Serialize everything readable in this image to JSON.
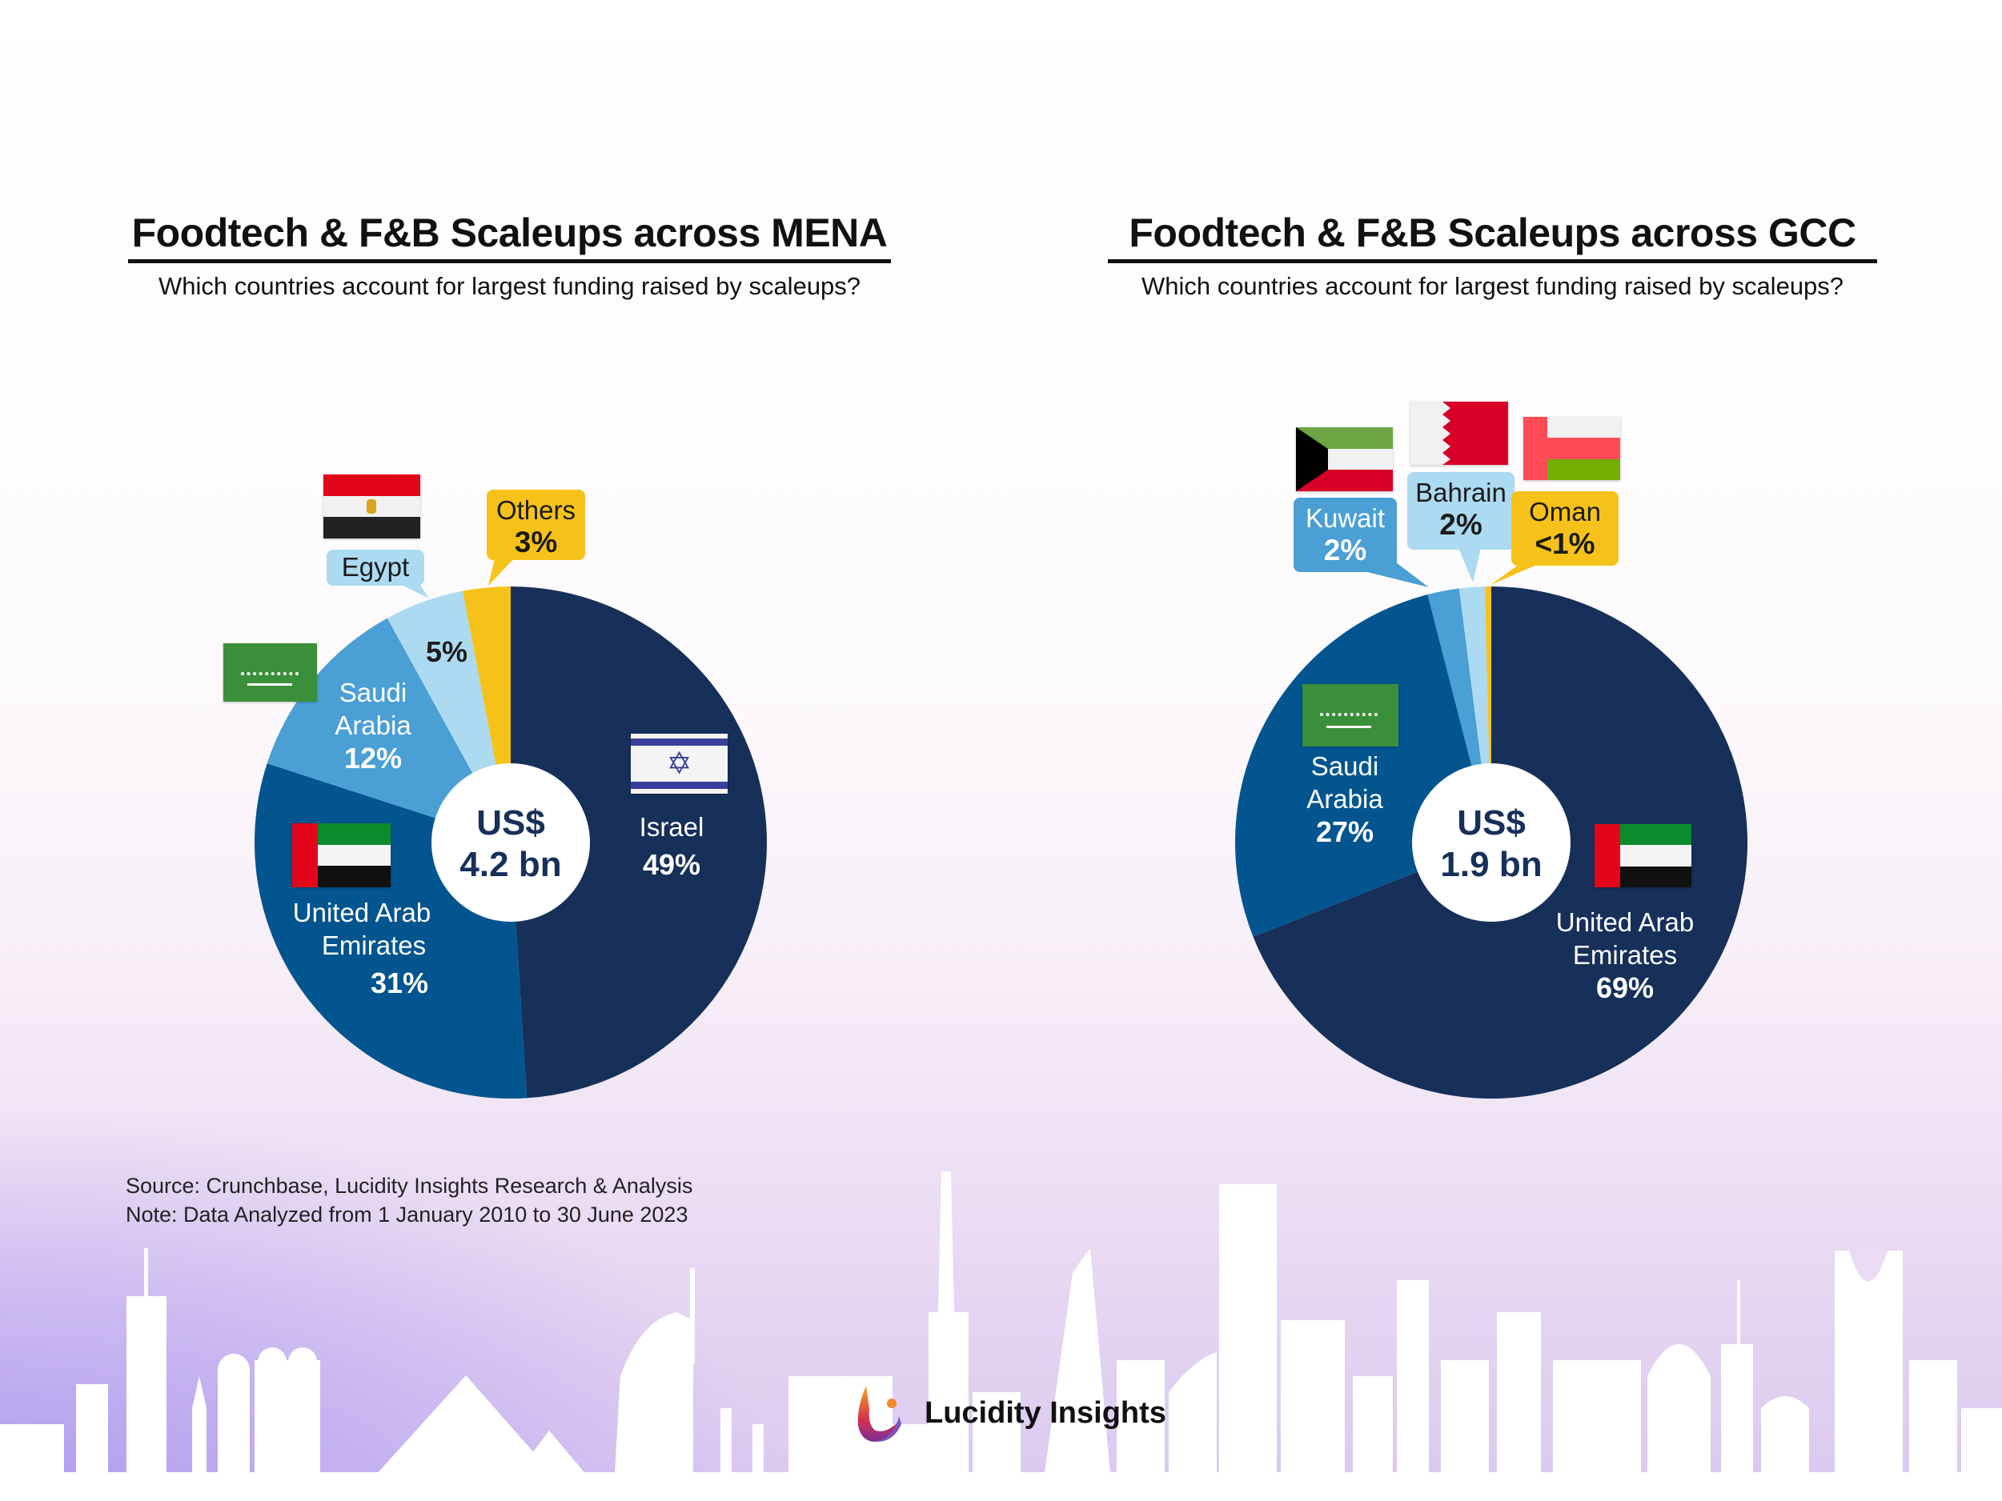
{
  "chart_data": [
    {
      "type": "pie",
      "title": "Foodtech & F&B Scaleups across MENA",
      "subtitle": "Which countries account for largest funding raised by scaleups?",
      "center_label": [
        "US$",
        "4.2 bn"
      ],
      "slices": [
        {
          "label": "Israel",
          "value": 49,
          "pct": "49%",
          "color": "#16305a"
        },
        {
          "label": "United Arab Emirates",
          "value": 31,
          "pct": "31%",
          "color": "#03558f"
        },
        {
          "label": "Saudi Arabia",
          "value": 12,
          "pct": "12%",
          "color": "#4a9fd4"
        },
        {
          "label": "Egypt",
          "value": 5,
          "pct": "5%",
          "color": "#acdaf1"
        },
        {
          "label": "Others",
          "value": 3,
          "pct": "3%",
          "color": "#f6c219"
        }
      ]
    },
    {
      "type": "pie",
      "title": "Foodtech & F&B Scaleups across GCC",
      "subtitle": "Which countries account for largest funding raised by scaleups?",
      "center_label": [
        "US$",
        "1.9 bn"
      ],
      "slices": [
        {
          "label": "United Arab Emirates",
          "value": 69,
          "pct": "69%",
          "color": "#16305a"
        },
        {
          "label": "Saudi Arabia",
          "value": 27,
          "pct": "27%",
          "color": "#03558f"
        },
        {
          "label": "Kuwait",
          "value": 2,
          "pct": "2%",
          "color": "#4a9fd4"
        },
        {
          "label": "Bahrain",
          "value": 1.6,
          "pct": "2%",
          "color": "#acdaf1"
        },
        {
          "label": "Oman",
          "value": 0.4,
          "pct": "<1%",
          "color": "#f6c219"
        }
      ]
    }
  ],
  "labels": {
    "uae_line1": "United Arab",
    "uae_line2": "Emirates",
    "saudi_line1": "Saudi",
    "saudi_line2": "Arabia"
  },
  "footer": {
    "source": "Source: Crunchbase, Lucidity Insights Research & Analysis",
    "note": "Note: Data Analyzed from 1 January 2010 to 30 June 2023",
    "brand": "Lucidity Insights"
  }
}
